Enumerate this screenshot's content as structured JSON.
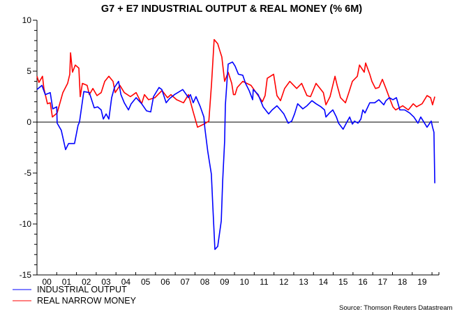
{
  "chart_data": {
    "type": "line",
    "title": "G7 + E7 INDUSTRIAL OUTPUT & REAL MONEY (% 6M)",
    "xlabel": "",
    "ylabel": "",
    "xlim": [
      2000,
      2020.35
    ],
    "ylim": [
      -15,
      10
    ],
    "yticks": [
      10,
      5,
      0,
      -5,
      -10,
      -15
    ],
    "xtick_labels": [
      "00",
      "01",
      "02",
      "03",
      "04",
      "05",
      "06",
      "07",
      "08",
      "09",
      "10",
      "11",
      "12",
      "13",
      "14",
      "15",
      "16",
      "17",
      "18",
      "19"
    ],
    "zero_line": true,
    "grid": false,
    "legend_placement": "bottom-left",
    "source": "Source: Thomson Reuters Datastream",
    "series": [
      {
        "name": "INDUSTRIAL OUTPUT",
        "color": "#0000ff",
        "points": [
          [
            2000.0,
            3.2
          ],
          [
            2000.25,
            3.6
          ],
          [
            2000.42,
            2.7
          ],
          [
            2000.67,
            2.9
          ],
          [
            2000.8,
            1.3
          ],
          [
            2001.0,
            1.5
          ],
          [
            2001.02,
            -0.1
          ],
          [
            2001.23,
            -0.8
          ],
          [
            2001.45,
            -2.7
          ],
          [
            2001.6,
            -2.1
          ],
          [
            2001.9,
            -2.1
          ],
          [
            2002.08,
            -0.3
          ],
          [
            2002.15,
            0.0
          ],
          [
            2002.37,
            3.0
          ],
          [
            2002.65,
            2.9
          ],
          [
            2002.9,
            1.4
          ],
          [
            2003.07,
            1.5
          ],
          [
            2003.25,
            1.2
          ],
          [
            2003.36,
            0.3
          ],
          [
            2003.5,
            0.8
          ],
          [
            2003.64,
            0.3
          ],
          [
            2003.78,
            2.4
          ],
          [
            2003.92,
            3.4
          ],
          [
            2004.13,
            4.0
          ],
          [
            2004.25,
            2.7
          ],
          [
            2004.42,
            1.9
          ],
          [
            2004.63,
            1.2
          ],
          [
            2004.77,
            1.8
          ],
          [
            2005.02,
            2.4
          ],
          [
            2005.3,
            1.8
          ],
          [
            2005.55,
            1.1
          ],
          [
            2005.76,
            1.0
          ],
          [
            2005.9,
            2.5
          ],
          [
            2006.18,
            3.4
          ],
          [
            2006.32,
            3.2
          ],
          [
            2006.54,
            1.9
          ],
          [
            2006.71,
            2.3
          ],
          [
            2006.96,
            2.7
          ],
          [
            2007.38,
            3.2
          ],
          [
            2007.56,
            2.7
          ],
          [
            2007.67,
            2.4
          ],
          [
            2007.77,
            2.7
          ],
          [
            2007.91,
            1.9
          ],
          [
            2008.05,
            2.5
          ],
          [
            2008.27,
            1.5
          ],
          [
            2008.45,
            0.5
          ],
          [
            2008.5,
            -0.6
          ],
          [
            2008.65,
            -2.9
          ],
          [
            2008.83,
            -5.1
          ],
          [
            2008.9,
            -8.1
          ],
          [
            2009.01,
            -12.5
          ],
          [
            2009.15,
            -12.2
          ],
          [
            2009.33,
            -9.7
          ],
          [
            2009.4,
            -5.8
          ],
          [
            2009.5,
            -1.9
          ],
          [
            2009.54,
            1.7
          ],
          [
            2009.68,
            5.7
          ],
          [
            2009.9,
            5.9
          ],
          [
            2010.03,
            5.5
          ],
          [
            2010.2,
            4.7
          ],
          [
            2010.42,
            4.6
          ],
          [
            2010.56,
            3.8
          ],
          [
            2010.74,
            3.1
          ],
          [
            2010.92,
            2.2
          ],
          [
            2010.95,
            3.2
          ],
          [
            2011.2,
            2.7
          ],
          [
            2011.45,
            1.5
          ],
          [
            2011.73,
            0.8
          ],
          [
            2011.91,
            1.2
          ],
          [
            2012.15,
            1.6
          ],
          [
            2012.33,
            1.2
          ],
          [
            2012.5,
            0.8
          ],
          [
            2012.72,
            -0.1
          ],
          [
            2012.9,
            0.1
          ],
          [
            2013.04,
            0.8
          ],
          [
            2013.2,
            1.8
          ],
          [
            2013.46,
            1.3
          ],
          [
            2013.67,
            1.6
          ],
          [
            2013.92,
            2.1
          ],
          [
            2014.13,
            1.8
          ],
          [
            2014.38,
            1.5
          ],
          [
            2014.56,
            1.2
          ],
          [
            2014.63,
            0.5
          ],
          [
            2014.81,
            0.9
          ],
          [
            2014.98,
            1.2
          ],
          [
            2015.16,
            0.5
          ],
          [
            2015.27,
            -0.1
          ],
          [
            2015.5,
            -0.7
          ],
          [
            2015.69,
            0.0
          ],
          [
            2015.83,
            0.5
          ],
          [
            2015.97,
            -0.2
          ],
          [
            2016.08,
            0.1
          ],
          [
            2016.25,
            -0.1
          ],
          [
            2016.4,
            0.3
          ],
          [
            2016.5,
            1.2
          ],
          [
            2016.61,
            0.9
          ],
          [
            2016.85,
            1.9
          ],
          [
            2017.1,
            1.9
          ],
          [
            2017.31,
            2.2
          ],
          [
            2017.56,
            1.7
          ],
          [
            2017.67,
            2.1
          ],
          [
            2017.84,
            2.4
          ],
          [
            2018.02,
            2.2
          ],
          [
            2018.2,
            2.4
          ],
          [
            2018.37,
            1.2
          ],
          [
            2018.62,
            1.2
          ],
          [
            2018.87,
            0.9
          ],
          [
            2019.08,
            0.5
          ],
          [
            2019.29,
            -0.1
          ],
          [
            2019.43,
            0.5
          ],
          [
            2019.75,
            -0.5
          ],
          [
            2019.96,
            0.1
          ],
          [
            2020.03,
            -0.5
          ],
          [
            2020.1,
            -1.0
          ],
          [
            2020.14,
            -6.0
          ]
        ]
      },
      {
        "name": "REAL NARROW MONEY",
        "color": "#ff0000",
        "points": [
          [
            2000.0,
            4.5
          ],
          [
            2000.1,
            3.9
          ],
          [
            2000.28,
            4.5
          ],
          [
            2000.35,
            3.3
          ],
          [
            2000.53,
            1.8
          ],
          [
            2000.67,
            1.9
          ],
          [
            2000.78,
            0.5
          ],
          [
            2001.02,
            0.9
          ],
          [
            2001.31,
            2.9
          ],
          [
            2001.55,
            3.8
          ],
          [
            2001.66,
            4.7
          ],
          [
            2001.7,
            6.8
          ],
          [
            2001.8,
            4.9
          ],
          [
            2001.94,
            5.6
          ],
          [
            2002.12,
            5.3
          ],
          [
            2002.19,
            2.5
          ],
          [
            2002.3,
            3.8
          ],
          [
            2002.54,
            3.6
          ],
          [
            2002.65,
            2.7
          ],
          [
            2002.83,
            3.3
          ],
          [
            2003.04,
            2.6
          ],
          [
            2003.25,
            2.9
          ],
          [
            2003.43,
            4.0
          ],
          [
            2003.64,
            4.5
          ],
          [
            2003.85,
            4.0
          ],
          [
            2003.96,
            2.9
          ],
          [
            2004.2,
            3.6
          ],
          [
            2004.42,
            2.9
          ],
          [
            2004.73,
            2.5
          ],
          [
            2005.02,
            2.9
          ],
          [
            2005.3,
            1.8
          ],
          [
            2005.44,
            2.7
          ],
          [
            2005.65,
            2.2
          ],
          [
            2005.97,
            2.4
          ],
          [
            2006.33,
            3.1
          ],
          [
            2006.61,
            2.4
          ],
          [
            2006.78,
            2.7
          ],
          [
            2007.07,
            2.2
          ],
          [
            2007.42,
            1.9
          ],
          [
            2007.67,
            2.7
          ],
          [
            2007.91,
            1.0
          ],
          [
            2008.13,
            -0.5
          ],
          [
            2008.45,
            -0.2
          ],
          [
            2008.7,
            0.1
          ],
          [
            2008.84,
            3.8
          ],
          [
            2008.97,
            8.1
          ],
          [
            2009.15,
            7.7
          ],
          [
            2009.26,
            7.0
          ],
          [
            2009.36,
            6.4
          ],
          [
            2009.5,
            4.0
          ],
          [
            2009.68,
            4.9
          ],
          [
            2009.86,
            3.8
          ],
          [
            2009.95,
            2.7
          ],
          [
            2010.03,
            2.7
          ],
          [
            2010.14,
            3.4
          ],
          [
            2010.42,
            4.0
          ],
          [
            2010.84,
            3.6
          ],
          [
            2011.2,
            2.6
          ],
          [
            2011.41,
            2.0
          ],
          [
            2011.55,
            2.6
          ],
          [
            2011.66,
            4.3
          ],
          [
            2011.98,
            4.7
          ],
          [
            2012.15,
            2.6
          ],
          [
            2012.33,
            2.1
          ],
          [
            2012.54,
            3.3
          ],
          [
            2012.8,
            4.0
          ],
          [
            2013.15,
            3.3
          ],
          [
            2013.4,
            3.8
          ],
          [
            2013.67,
            2.6
          ],
          [
            2013.85,
            2.5
          ],
          [
            2014.13,
            3.8
          ],
          [
            2014.5,
            2.9
          ],
          [
            2014.63,
            1.7
          ],
          [
            2014.84,
            2.5
          ],
          [
            2015.09,
            4.5
          ],
          [
            2015.2,
            3.6
          ],
          [
            2015.37,
            2.4
          ],
          [
            2015.62,
            1.9
          ],
          [
            2015.79,
            2.9
          ],
          [
            2015.97,
            4.0
          ],
          [
            2016.22,
            4.5
          ],
          [
            2016.33,
            5.6
          ],
          [
            2016.57,
            4.9
          ],
          [
            2016.64,
            5.8
          ],
          [
            2016.85,
            4.7
          ],
          [
            2016.96,
            4.0
          ],
          [
            2017.14,
            3.3
          ],
          [
            2017.31,
            3.4
          ],
          [
            2017.49,
            4.2
          ],
          [
            2017.67,
            3.3
          ],
          [
            2017.84,
            2.4
          ],
          [
            2018.02,
            1.5
          ],
          [
            2018.16,
            1.2
          ],
          [
            2018.34,
            1.4
          ],
          [
            2018.52,
            1.6
          ],
          [
            2018.8,
            1.2
          ],
          [
            2019.05,
            1.8
          ],
          [
            2019.22,
            1.5
          ],
          [
            2019.5,
            1.8
          ],
          [
            2019.75,
            2.6
          ],
          [
            2019.93,
            2.4
          ],
          [
            2020.03,
            1.7
          ],
          [
            2020.14,
            2.5
          ]
        ]
      }
    ]
  }
}
